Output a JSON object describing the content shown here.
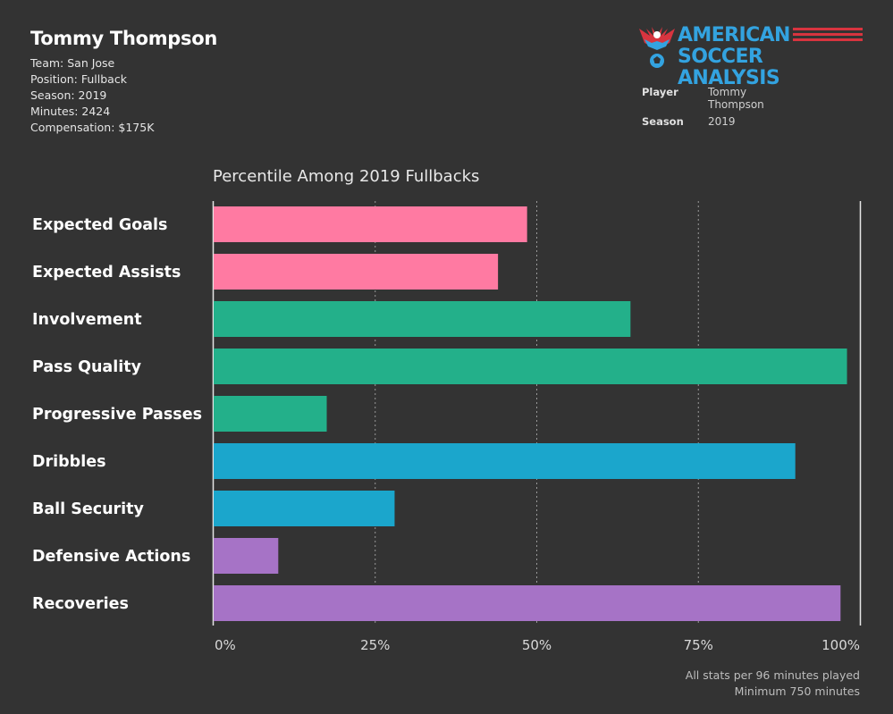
{
  "header": {
    "player_name": "Tommy Thompson",
    "team": "Team: San Jose",
    "position": "Position: Fullback",
    "season": "Season: 2019",
    "minutes": "Minutes: 2424",
    "compensation": "Compensation: $175K"
  },
  "logo": {
    "line1": "AMERICAN",
    "line2": "SOCCER ANALYSIS",
    "text_color": "#33a3e0",
    "stripe_color": "#d8343f",
    "icon": "eagle-soccer-ball-icon"
  },
  "filters": {
    "player_label": "Player",
    "player_value": "Tommy Thompson",
    "season_label": "Season",
    "season_value": "2019"
  },
  "footnote": {
    "line1": "All stats per 96 minutes played",
    "line2": "Minimum 750 minutes"
  },
  "chart_data": {
    "type": "bar",
    "orientation": "horizontal",
    "title": "Percentile Among 2019 Fullbacks",
    "xlabel": "",
    "ylabel": "",
    "xlim": [
      0,
      100
    ],
    "ticks": [
      "0%",
      "25%",
      "50%",
      "75%",
      "100%"
    ],
    "grid": "vertical dotted at 25% intervals",
    "categories": [
      "Expected Goals",
      "Expected Assists",
      "Involvement",
      "Pass Quality",
      "Progressive Passes",
      "Dribbles",
      "Ball Security",
      "Defensive Actions",
      "Recoveries"
    ],
    "values": [
      48.5,
      44,
      64.5,
      98,
      17.5,
      90,
      28,
      10,
      97
    ],
    "colors": [
      "#ff7aa2",
      "#ff7aa2",
      "#23b08a",
      "#23b08a",
      "#23b08a",
      "#1ba6cc",
      "#1ba6cc",
      "#a673c6",
      "#a673c6"
    ]
  }
}
